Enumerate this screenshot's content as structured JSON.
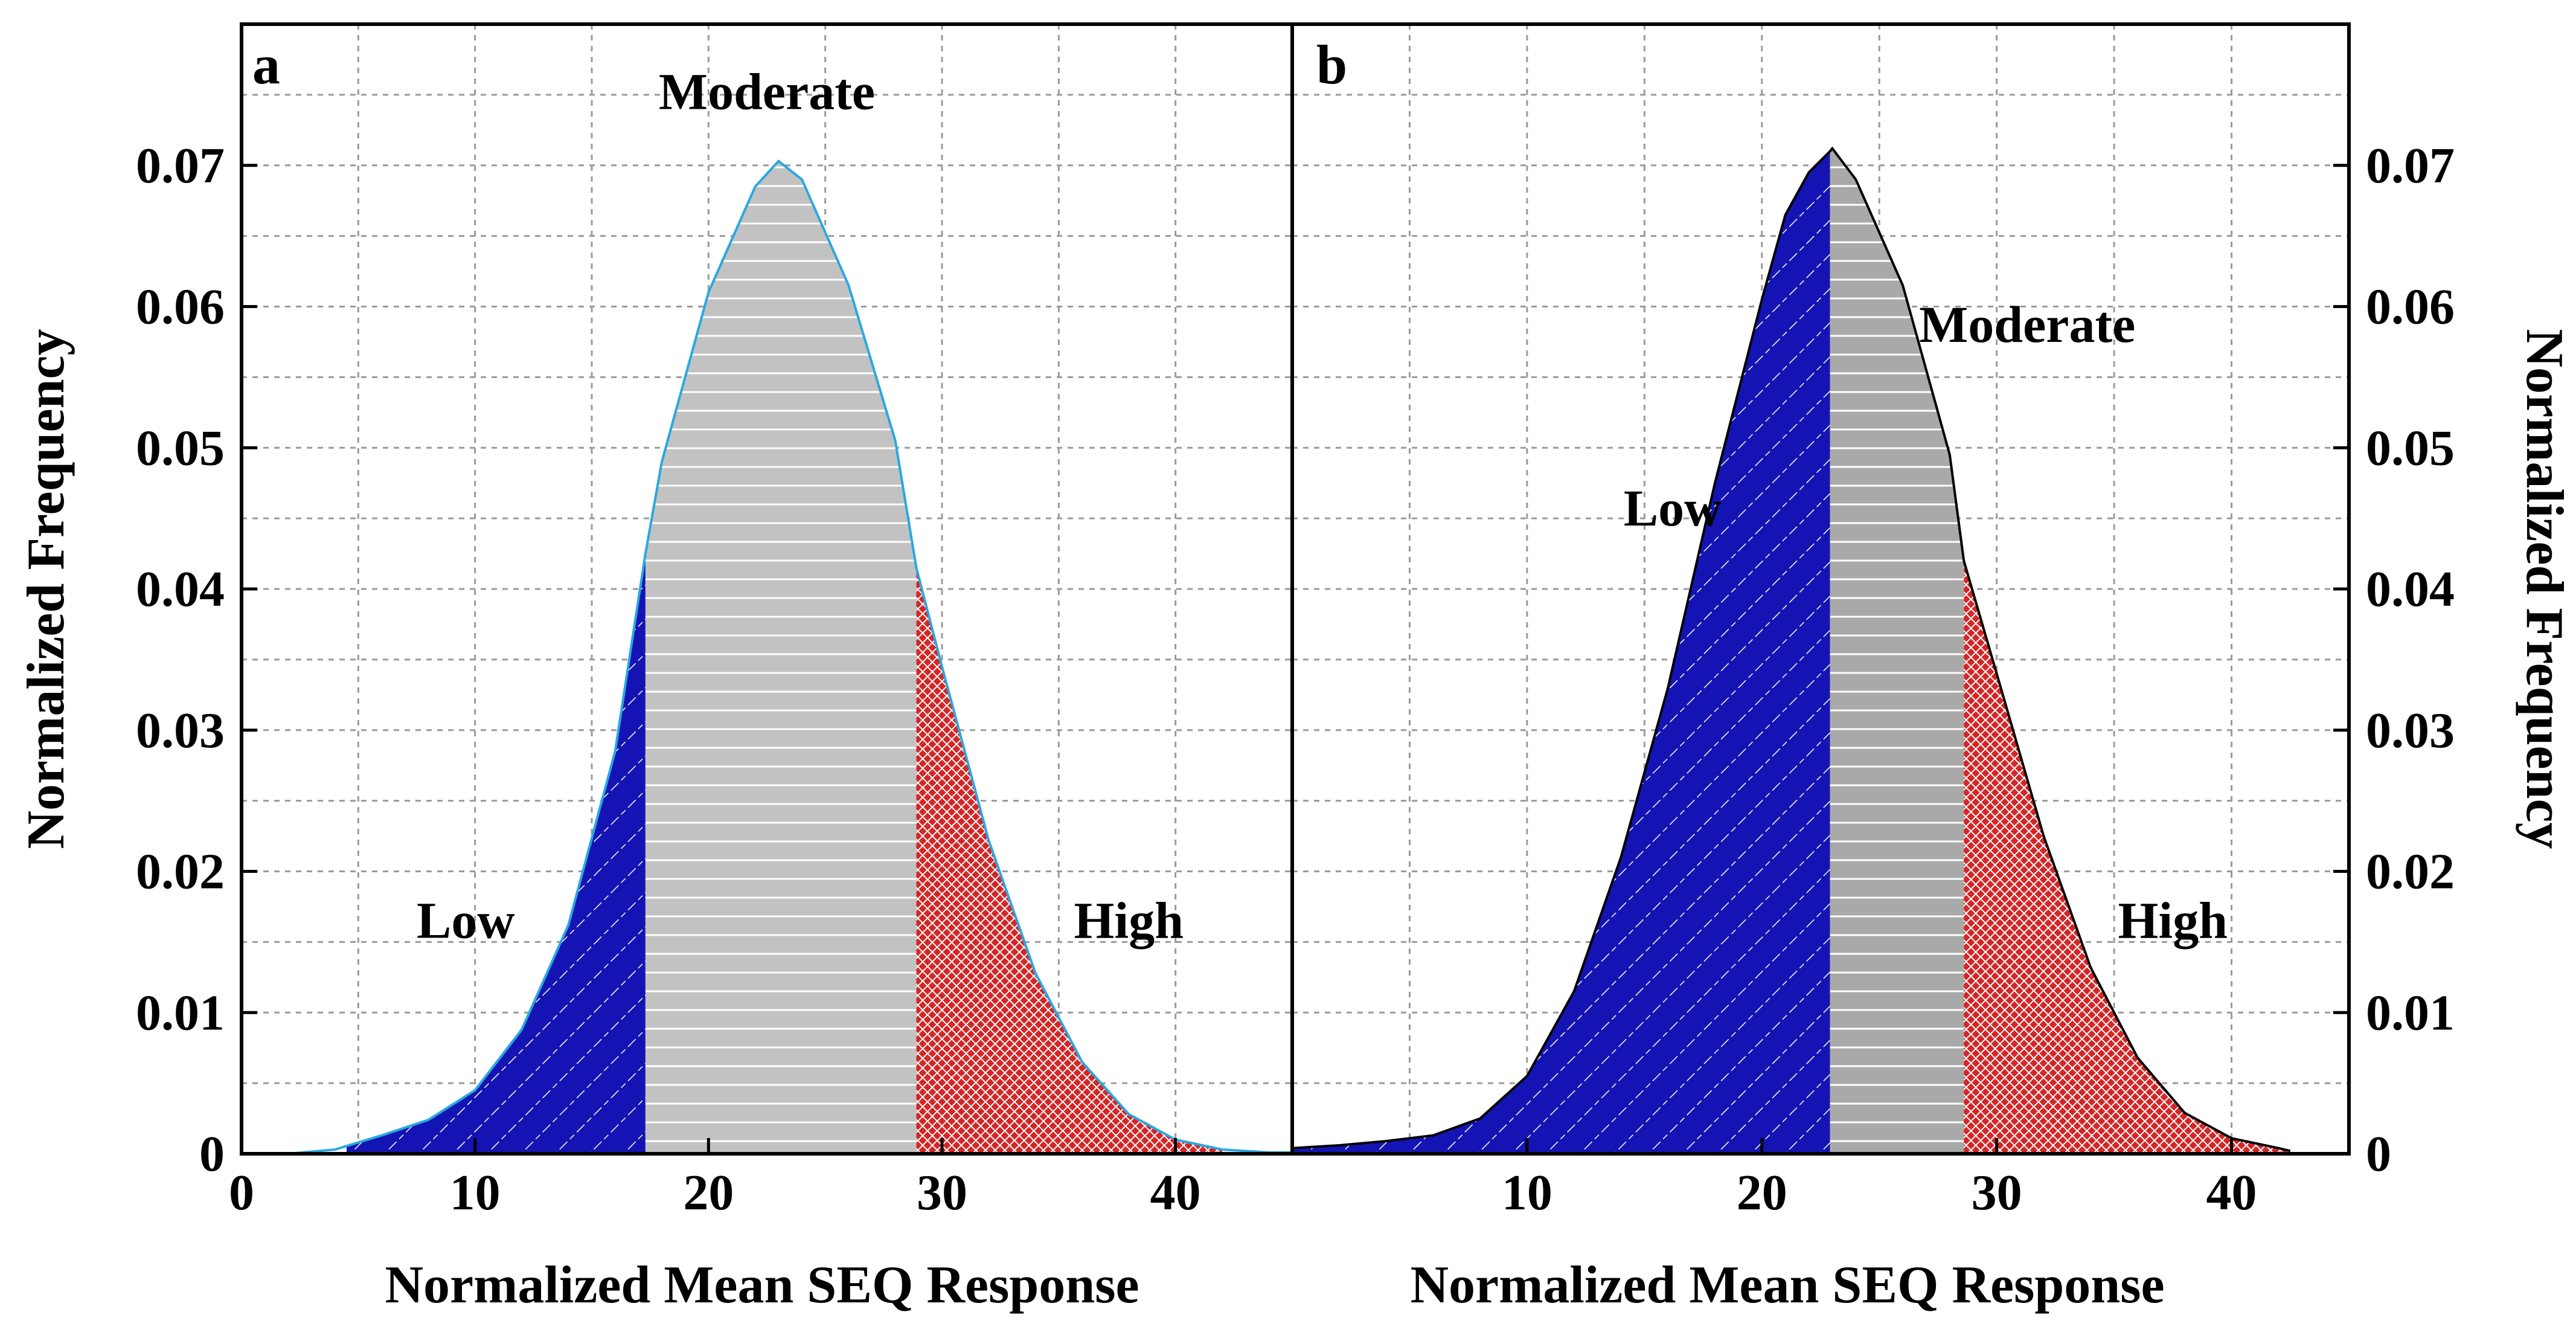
{
  "colors": {
    "low": "#1414b4",
    "moderate_a": "#c2c2c2",
    "moderate_b": "#a9a9a9",
    "high": "#d42626",
    "outline_a": "#2aa7e0",
    "outline_b": "#000000"
  },
  "chart_data": [
    {
      "type": "area",
      "panel": "a",
      "xlabel": "Normalized Mean SEQ Response",
      "ylabel": "Normalized Frequency",
      "xlim": [
        0,
        45
      ],
      "ylim": [
        0,
        0.08
      ],
      "xticks": [
        0,
        10,
        20,
        30,
        40
      ],
      "xtick_labels": [
        "0",
        "10",
        "20",
        "30",
        "40"
      ],
      "yticks": [
        0,
        0.01,
        0.02,
        0.03,
        0.04,
        0.05,
        0.06,
        0.07
      ],
      "ytick_labels": [
        "0",
        "0.01",
        "0.02",
        "0.03",
        "0.04",
        "0.05",
        "0.06",
        "0.07"
      ],
      "y_axis_side": "left",
      "grid": true,
      "x": [
        0,
        2,
        4,
        5,
        6,
        8,
        10,
        12,
        14,
        16,
        17.3,
        18,
        20,
        22,
        23,
        24,
        26,
        28,
        28.9,
        30,
        32,
        34,
        36,
        38,
        40,
        42,
        44,
        45
      ],
      "y": [
        0,
        0,
        0.0003,
        0.0008,
        0.0013,
        0.0024,
        0.0045,
        0.0088,
        0.0162,
        0.0285,
        0.0425,
        0.049,
        0.061,
        0.0685,
        0.0703,
        0.069,
        0.0615,
        0.0505,
        0.0415,
        0.0345,
        0.0222,
        0.0128,
        0.0065,
        0.0028,
        0.001,
        0.0003,
        0.0001,
        0.0001
      ],
      "regions": [
        {
          "name": "Low",
          "x_from": 4.5,
          "x_to": 17.3,
          "label_x": 9.6,
          "label_y": 0.0153
        },
        {
          "name": "Moderate",
          "x_from": 17.3,
          "x_to": 28.9,
          "label_x": 22.5,
          "label_y": 0.074
        },
        {
          "name": "High",
          "x_from": 28.9,
          "x_to": 42,
          "label_x": 38,
          "label_y": 0.0153
        }
      ],
      "annotations": [
        {
          "text": "a"
        }
      ]
    },
    {
      "type": "area",
      "panel": "b",
      "xlabel": "Normalized Mean SEQ Response",
      "ylabel": "Normalized Frequency",
      "xlim": [
        0,
        45
      ],
      "ylim": [
        0,
        0.08
      ],
      "xticks": [
        10,
        20,
        30,
        40
      ],
      "xtick_labels": [
        "10",
        "20",
        "30",
        "40"
      ],
      "yticks": [
        0,
        0.01,
        0.02,
        0.03,
        0.04,
        0.05,
        0.06,
        0.07
      ],
      "ytick_labels": [
        "0",
        "0.01",
        "0.02",
        "0.03",
        "0.04",
        "0.05",
        "0.06",
        "0.07"
      ],
      "y_axis_side": "right",
      "grid": true,
      "x": [
        0,
        2,
        4,
        6,
        8,
        10,
        12,
        14,
        16,
        18,
        20,
        21,
        22,
        22.9,
        23,
        24,
        26,
        28,
        28.6,
        30,
        32,
        34,
        36,
        38,
        40,
        42,
        42.5
      ],
      "y": [
        0.0004,
        0.0006,
        0.0009,
        0.0013,
        0.0025,
        0.0055,
        0.0115,
        0.021,
        0.033,
        0.0475,
        0.0605,
        0.0665,
        0.0695,
        0.071,
        0.0712,
        0.069,
        0.0615,
        0.0495,
        0.042,
        0.034,
        0.0225,
        0.0132,
        0.0068,
        0.0029,
        0.0011,
        0.0004,
        0.0002
      ],
      "regions": [
        {
          "name": "Low",
          "x_from": 0,
          "x_to": 22.9,
          "label_x": 16.2,
          "label_y": 0.0445
        },
        {
          "name": "Moderate",
          "x_from": 22.9,
          "x_to": 28.6,
          "label_x": 31.3,
          "label_y": 0.0575
        },
        {
          "name": "High",
          "x_from": 28.6,
          "x_to": 42.5,
          "label_x": 37.5,
          "label_y": 0.0153
        }
      ],
      "annotations": [
        {
          "text": "b"
        }
      ]
    }
  ]
}
